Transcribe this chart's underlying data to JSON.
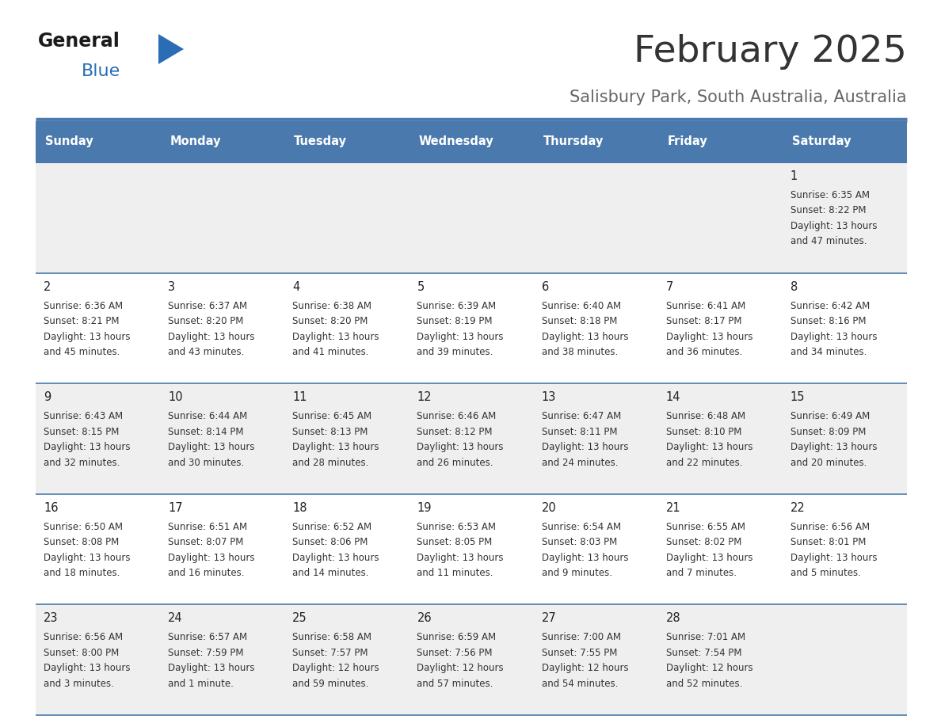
{
  "title": "February 2025",
  "subtitle": "Salisbury Park, South Australia, Australia",
  "header_bg": "#4a7aad",
  "header_text": "#ffffff",
  "row_bg_even": "#efefef",
  "row_bg_odd": "#ffffff",
  "separator_color": "#4a7aad",
  "day_headers": [
    "Sunday",
    "Monday",
    "Tuesday",
    "Wednesday",
    "Thursday",
    "Friday",
    "Saturday"
  ],
  "title_color": "#333333",
  "subtitle_color": "#666666",
  "day_number_color": "#222222",
  "cell_text_color": "#333333",
  "logo_general_color": "#1a1a1a",
  "logo_blue_color": "#2a6db5",
  "logo_triangle_color": "#2a6db5",
  "days": [
    {
      "day": 1,
      "col": 6,
      "row": 0,
      "sunrise": "6:35 AM",
      "sunset": "8:22 PM",
      "daylight": "13 hours and 47 minutes"
    },
    {
      "day": 2,
      "col": 0,
      "row": 1,
      "sunrise": "6:36 AM",
      "sunset": "8:21 PM",
      "daylight": "13 hours and 45 minutes"
    },
    {
      "day": 3,
      "col": 1,
      "row": 1,
      "sunrise": "6:37 AM",
      "sunset": "8:20 PM",
      "daylight": "13 hours and 43 minutes"
    },
    {
      "day": 4,
      "col": 2,
      "row": 1,
      "sunrise": "6:38 AM",
      "sunset": "8:20 PM",
      "daylight": "13 hours and 41 minutes"
    },
    {
      "day": 5,
      "col": 3,
      "row": 1,
      "sunrise": "6:39 AM",
      "sunset": "8:19 PM",
      "daylight": "13 hours and 39 minutes"
    },
    {
      "day": 6,
      "col": 4,
      "row": 1,
      "sunrise": "6:40 AM",
      "sunset": "8:18 PM",
      "daylight": "13 hours and 38 minutes"
    },
    {
      "day": 7,
      "col": 5,
      "row": 1,
      "sunrise": "6:41 AM",
      "sunset": "8:17 PM",
      "daylight": "13 hours and 36 minutes"
    },
    {
      "day": 8,
      "col": 6,
      "row": 1,
      "sunrise": "6:42 AM",
      "sunset": "8:16 PM",
      "daylight": "13 hours and 34 minutes"
    },
    {
      "day": 9,
      "col": 0,
      "row": 2,
      "sunrise": "6:43 AM",
      "sunset": "8:15 PM",
      "daylight": "13 hours and 32 minutes"
    },
    {
      "day": 10,
      "col": 1,
      "row": 2,
      "sunrise": "6:44 AM",
      "sunset": "8:14 PM",
      "daylight": "13 hours and 30 minutes"
    },
    {
      "day": 11,
      "col": 2,
      "row": 2,
      "sunrise": "6:45 AM",
      "sunset": "8:13 PM",
      "daylight": "13 hours and 28 minutes"
    },
    {
      "day": 12,
      "col": 3,
      "row": 2,
      "sunrise": "6:46 AM",
      "sunset": "8:12 PM",
      "daylight": "13 hours and 26 minutes"
    },
    {
      "day": 13,
      "col": 4,
      "row": 2,
      "sunrise": "6:47 AM",
      "sunset": "8:11 PM",
      "daylight": "13 hours and 24 minutes"
    },
    {
      "day": 14,
      "col": 5,
      "row": 2,
      "sunrise": "6:48 AM",
      "sunset": "8:10 PM",
      "daylight": "13 hours and 22 minutes"
    },
    {
      "day": 15,
      "col": 6,
      "row": 2,
      "sunrise": "6:49 AM",
      "sunset": "8:09 PM",
      "daylight": "13 hours and 20 minutes"
    },
    {
      "day": 16,
      "col": 0,
      "row": 3,
      "sunrise": "6:50 AM",
      "sunset": "8:08 PM",
      "daylight": "13 hours and 18 minutes"
    },
    {
      "day": 17,
      "col": 1,
      "row": 3,
      "sunrise": "6:51 AM",
      "sunset": "8:07 PM",
      "daylight": "13 hours and 16 minutes"
    },
    {
      "day": 18,
      "col": 2,
      "row": 3,
      "sunrise": "6:52 AM",
      "sunset": "8:06 PM",
      "daylight": "13 hours and 14 minutes"
    },
    {
      "day": 19,
      "col": 3,
      "row": 3,
      "sunrise": "6:53 AM",
      "sunset": "8:05 PM",
      "daylight": "13 hours and 11 minutes"
    },
    {
      "day": 20,
      "col": 4,
      "row": 3,
      "sunrise": "6:54 AM",
      "sunset": "8:03 PM",
      "daylight": "13 hours and 9 minutes"
    },
    {
      "day": 21,
      "col": 5,
      "row": 3,
      "sunrise": "6:55 AM",
      "sunset": "8:02 PM",
      "daylight": "13 hours and 7 minutes"
    },
    {
      "day": 22,
      "col": 6,
      "row": 3,
      "sunrise": "6:56 AM",
      "sunset": "8:01 PM",
      "daylight": "13 hours and 5 minutes"
    },
    {
      "day": 23,
      "col": 0,
      "row": 4,
      "sunrise": "6:56 AM",
      "sunset": "8:00 PM",
      "daylight": "13 hours and 3 minutes"
    },
    {
      "day": 24,
      "col": 1,
      "row": 4,
      "sunrise": "6:57 AM",
      "sunset": "7:59 PM",
      "daylight": "13 hours and 1 minute"
    },
    {
      "day": 25,
      "col": 2,
      "row": 4,
      "sunrise": "6:58 AM",
      "sunset": "7:57 PM",
      "daylight": "12 hours and 59 minutes"
    },
    {
      "day": 26,
      "col": 3,
      "row": 4,
      "sunrise": "6:59 AM",
      "sunset": "7:56 PM",
      "daylight": "12 hours and 57 minutes"
    },
    {
      "day": 27,
      "col": 4,
      "row": 4,
      "sunrise": "7:00 AM",
      "sunset": "7:55 PM",
      "daylight": "12 hours and 54 minutes"
    },
    {
      "day": 28,
      "col": 5,
      "row": 4,
      "sunrise": "7:01 AM",
      "sunset": "7:54 PM",
      "daylight": "12 hours and 52 minutes"
    }
  ]
}
